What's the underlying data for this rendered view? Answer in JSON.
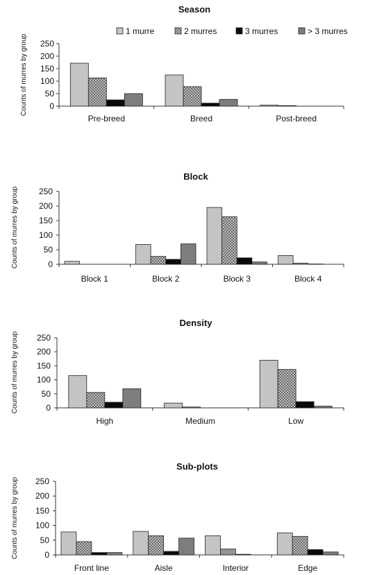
{
  "colors": {
    "series": [
      "#c4c4c4",
      "crosshatch",
      "#0a0a0a",
      "#7d7d7d"
    ],
    "axis": "#333333"
  },
  "legend": {
    "placement": "top-right of first panel",
    "entries": [
      "1 murre",
      "2 murres",
      "3 murres",
      "> 3 murres"
    ]
  },
  "chart_data": [
    {
      "type": "bar",
      "title": "Season",
      "ylabel": "Counts of murres by group",
      "ylim": [
        0,
        250
      ],
      "yticks": [
        "0",
        "50",
        "100",
        "150",
        "200",
        "250"
      ],
      "categories": [
        "Pre-breed",
        "Breed",
        "Post-breed"
      ],
      "series": [
        {
          "name": "1 murre",
          "values": [
            172,
            125,
            4
          ]
        },
        {
          "name": "2 murres",
          "values": [
            113,
            78,
            2
          ]
        },
        {
          "name": "3 murres",
          "values": [
            25,
            12,
            0
          ]
        },
        {
          "name": "> 3 murres",
          "values": [
            50,
            27,
            0
          ]
        }
      ]
    },
    {
      "type": "bar",
      "title": "Block",
      "ylabel": "Counts of murres by group",
      "ylim": [
        0,
        250
      ],
      "yticks": [
        "0",
        "50",
        "100",
        "150",
        "200",
        "250"
      ],
      "categories": [
        "Block 1",
        "Block 2",
        "Block 3",
        "Block 4"
      ],
      "series": [
        {
          "name": "1 murre",
          "values": [
            10,
            68,
            195,
            30
          ]
        },
        {
          "name": "2 murres",
          "values": [
            0,
            27,
            163,
            4
          ]
        },
        {
          "name": "3 murres",
          "values": [
            0,
            17,
            22,
            1
          ]
        },
        {
          "name": "> 3 murres",
          "values": [
            0,
            70,
            8,
            0
          ]
        }
      ]
    },
    {
      "type": "bar",
      "title": "Density",
      "ylabel": "Counts of murres by group",
      "ylim": [
        0,
        250
      ],
      "yticks": [
        "0",
        "50",
        "100",
        "150",
        "200",
        "250"
      ],
      "categories": [
        "High",
        "Medium",
        "Low"
      ],
      "series": [
        {
          "name": "1 murre",
          "values": [
            115,
            17,
            170
          ]
        },
        {
          "name": "2 murres",
          "values": [
            55,
            3,
            137
          ]
        },
        {
          "name": "3 murres",
          "values": [
            20,
            0,
            22
          ]
        },
        {
          "name": "> 3 murres",
          "values": [
            68,
            0,
            6
          ]
        }
      ]
    },
    {
      "type": "bar",
      "title": "Sub-plots",
      "ylabel": "Counts of murres by group",
      "ylim": [
        0,
        250
      ],
      "yticks": [
        "0",
        "50",
        "100",
        "150",
        "200",
        "250"
      ],
      "categories": [
        "Front line",
        "Aisle",
        "Interior",
        "Edge"
      ],
      "series": [
        {
          "name": "1 murre",
          "values": [
            78,
            80,
            65,
            75
          ]
        },
        {
          "name": "2 murres",
          "values": [
            45,
            65,
            20,
            63
          ]
        },
        {
          "name": "3 murres",
          "values": [
            8,
            12,
            2,
            18
          ]
        },
        {
          "name": "> 3 murres",
          "values": [
            8,
            57,
            0,
            10
          ]
        }
      ]
    }
  ]
}
